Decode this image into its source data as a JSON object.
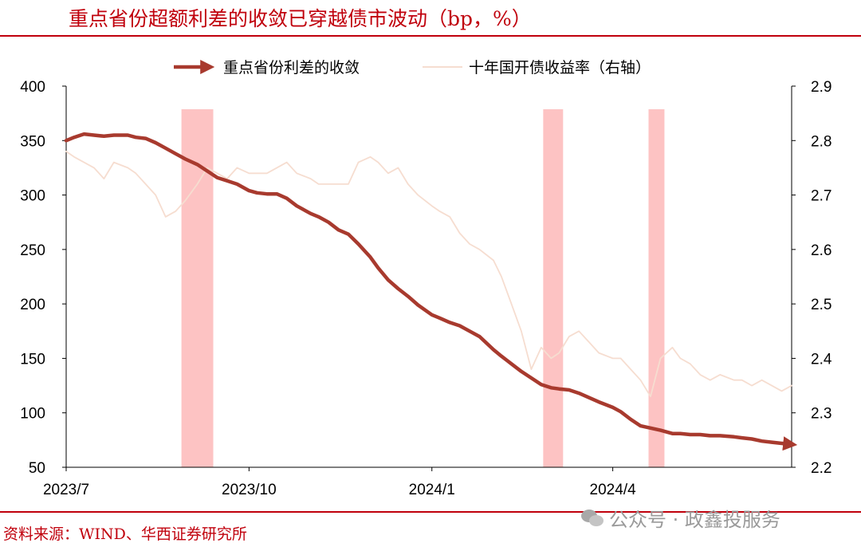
{
  "page": {
    "title": "重点省份超额利差的收敛已穿越债市波动（bp，%）",
    "source": "资料来源：WIND、华西证券研究所",
    "watermark": "公众号 · 政鑫投服务"
  },
  "colors": {
    "accent": "#c0000c",
    "spread": "#a83a2e",
    "yield": "#f6ddd0",
    "highlight": "#fdc3c3"
  },
  "chart_data": {
    "type": "line",
    "title": "重点省份超额利差的收敛已穿越债市波动（bp，%）",
    "x_ticks": [
      "2023/7",
      "2023/10",
      "2024/1",
      "2024/4"
    ],
    "x_tick_dates": [
      "2023-07-01",
      "2023-10-01",
      "2024-01-01",
      "2024-04-01"
    ],
    "x_range": [
      "2023-07-01",
      "2024-06-30"
    ],
    "y_left": {
      "lim": [
        50,
        400
      ],
      "ticks": [
        50,
        100,
        150,
        200,
        250,
        300,
        350,
        400
      ]
    },
    "y_right": {
      "lim": [
        2.2,
        2.9
      ],
      "ticks": [
        "2.2",
        "2.3",
        "2.4",
        "2.5",
        "2.6",
        "2.7",
        "2.8",
        "2.9"
      ]
    },
    "legend": {
      "placement": "top"
    },
    "highlight_periods": [
      {
        "start": "2023-08-28",
        "end": "2023-09-13"
      },
      {
        "start": "2024-02-26",
        "end": "2024-03-07"
      },
      {
        "start": "2024-04-19",
        "end": "2024-04-27"
      }
    ],
    "series": [
      {
        "name": "重点省份利差的收敛",
        "axis": "left",
        "style": "thick-arrow",
        "points": [
          [
            "2023-07-01",
            350
          ],
          [
            "2023-07-05",
            353
          ],
          [
            "2023-07-10",
            356
          ],
          [
            "2023-07-15",
            355
          ],
          [
            "2023-07-20",
            354
          ],
          [
            "2023-07-25",
            355
          ],
          [
            "2023-08-01",
            355
          ],
          [
            "2023-08-05",
            353
          ],
          [
            "2023-08-10",
            352
          ],
          [
            "2023-08-15",
            348
          ],
          [
            "2023-08-20",
            343
          ],
          [
            "2023-08-25",
            338
          ],
          [
            "2023-08-30",
            333
          ],
          [
            "2023-09-05",
            328
          ],
          [
            "2023-09-10",
            322
          ],
          [
            "2023-09-15",
            316
          ],
          [
            "2023-09-20",
            313
          ],
          [
            "2023-09-25",
            310
          ],
          [
            "2023-10-01",
            304
          ],
          [
            "2023-10-05",
            302
          ],
          [
            "2023-10-10",
            301
          ],
          [
            "2023-10-15",
            301
          ],
          [
            "2023-10-20",
            297
          ],
          [
            "2023-10-25",
            290
          ],
          [
            "2023-11-01",
            283
          ],
          [
            "2023-11-05",
            280
          ],
          [
            "2023-11-10",
            275
          ],
          [
            "2023-11-15",
            268
          ],
          [
            "2023-11-20",
            264
          ],
          [
            "2023-11-25",
            255
          ],
          [
            "2023-12-01",
            243
          ],
          [
            "2023-12-05",
            233
          ],
          [
            "2023-12-10",
            222
          ],
          [
            "2023-12-15",
            214
          ],
          [
            "2023-12-20",
            207
          ],
          [
            "2023-12-25",
            199
          ],
          [
            "2024-01-01",
            190
          ],
          [
            "2024-01-05",
            187
          ],
          [
            "2024-01-10",
            183
          ],
          [
            "2024-01-15",
            180
          ],
          [
            "2024-01-20",
            175
          ],
          [
            "2024-01-25",
            170
          ],
          [
            "2024-02-01",
            158
          ],
          [
            "2024-02-05",
            152
          ],
          [
            "2024-02-10",
            145
          ],
          [
            "2024-02-15",
            138
          ],
          [
            "2024-02-20",
            132
          ],
          [
            "2024-02-25",
            126
          ],
          [
            "2024-03-01",
            123
          ],
          [
            "2024-03-05",
            122
          ],
          [
            "2024-03-10",
            121
          ],
          [
            "2024-03-15",
            118
          ],
          [
            "2024-03-20",
            114
          ],
          [
            "2024-03-25",
            110
          ],
          [
            "2024-04-01",
            105
          ],
          [
            "2024-04-05",
            101
          ],
          [
            "2024-04-10",
            94
          ],
          [
            "2024-04-15",
            88
          ],
          [
            "2024-04-20",
            86
          ],
          [
            "2024-04-25",
            84
          ],
          [
            "2024-05-01",
            81
          ],
          [
            "2024-05-05",
            81
          ],
          [
            "2024-05-10",
            80
          ],
          [
            "2024-05-15",
            80
          ],
          [
            "2024-05-20",
            79
          ],
          [
            "2024-05-25",
            79
          ],
          [
            "2024-06-01",
            78
          ],
          [
            "2024-06-05",
            77
          ],
          [
            "2024-06-10",
            76
          ],
          [
            "2024-06-15",
            74
          ],
          [
            "2024-06-20",
            73
          ],
          [
            "2024-06-25",
            72
          ],
          [
            "2024-06-30",
            71
          ]
        ]
      },
      {
        "name": "十年国开债收益率（右轴）",
        "axis": "right",
        "style": "thin",
        "points": [
          [
            "2023-07-01",
            2.78
          ],
          [
            "2023-07-05",
            2.77
          ],
          [
            "2023-07-10",
            2.76
          ],
          [
            "2023-07-15",
            2.75
          ],
          [
            "2023-07-20",
            2.73
          ],
          [
            "2023-07-25",
            2.76
          ],
          [
            "2023-08-01",
            2.75
          ],
          [
            "2023-08-05",
            2.74
          ],
          [
            "2023-08-10",
            2.72
          ],
          [
            "2023-08-15",
            2.7
          ],
          [
            "2023-08-20",
            2.66
          ],
          [
            "2023-08-25",
            2.67
          ],
          [
            "2023-08-30",
            2.69
          ],
          [
            "2023-09-05",
            2.72
          ],
          [
            "2023-09-10",
            2.75
          ],
          [
            "2023-09-15",
            2.74
          ],
          [
            "2023-09-20",
            2.73
          ],
          [
            "2023-09-25",
            2.75
          ],
          [
            "2023-10-01",
            2.74
          ],
          [
            "2023-10-05",
            2.74
          ],
          [
            "2023-10-10",
            2.74
          ],
          [
            "2023-10-15",
            2.75
          ],
          [
            "2023-10-20",
            2.76
          ],
          [
            "2023-10-25",
            2.74
          ],
          [
            "2023-11-01",
            2.73
          ],
          [
            "2023-11-05",
            2.72
          ],
          [
            "2023-11-10",
            2.72
          ],
          [
            "2023-11-15",
            2.72
          ],
          [
            "2023-11-20",
            2.72
          ],
          [
            "2023-11-25",
            2.76
          ],
          [
            "2023-12-01",
            2.77
          ],
          [
            "2023-12-05",
            2.76
          ],
          [
            "2023-12-10",
            2.74
          ],
          [
            "2023-12-15",
            2.75
          ],
          [
            "2023-12-20",
            2.72
          ],
          [
            "2023-12-25",
            2.7
          ],
          [
            "2024-01-01",
            2.68
          ],
          [
            "2024-01-05",
            2.67
          ],
          [
            "2024-01-10",
            2.66
          ],
          [
            "2024-01-15",
            2.63
          ],
          [
            "2024-01-20",
            2.61
          ],
          [
            "2024-01-25",
            2.6
          ],
          [
            "2024-02-01",
            2.58
          ],
          [
            "2024-02-05",
            2.55
          ],
          [
            "2024-02-10",
            2.5
          ],
          [
            "2024-02-15",
            2.45
          ],
          [
            "2024-02-20",
            2.38
          ],
          [
            "2024-02-25",
            2.42
          ],
          [
            "2024-03-01",
            2.4
          ],
          [
            "2024-03-05",
            2.41
          ],
          [
            "2024-03-10",
            2.44
          ],
          [
            "2024-03-15",
            2.45
          ],
          [
            "2024-03-20",
            2.43
          ],
          [
            "2024-03-25",
            2.41
          ],
          [
            "2024-04-01",
            2.4
          ],
          [
            "2024-04-05",
            2.4
          ],
          [
            "2024-04-10",
            2.38
          ],
          [
            "2024-04-15",
            2.36
          ],
          [
            "2024-04-20",
            2.33
          ],
          [
            "2024-04-25",
            2.4
          ],
          [
            "2024-05-01",
            2.42
          ],
          [
            "2024-05-05",
            2.4
          ],
          [
            "2024-05-10",
            2.39
          ],
          [
            "2024-05-15",
            2.37
          ],
          [
            "2024-05-20",
            2.36
          ],
          [
            "2024-05-25",
            2.37
          ],
          [
            "2024-06-01",
            2.36
          ],
          [
            "2024-06-05",
            2.36
          ],
          [
            "2024-06-10",
            2.35
          ],
          [
            "2024-06-15",
            2.36
          ],
          [
            "2024-06-20",
            2.35
          ],
          [
            "2024-06-25",
            2.34
          ],
          [
            "2024-06-30",
            2.35
          ]
        ]
      }
    ]
  }
}
